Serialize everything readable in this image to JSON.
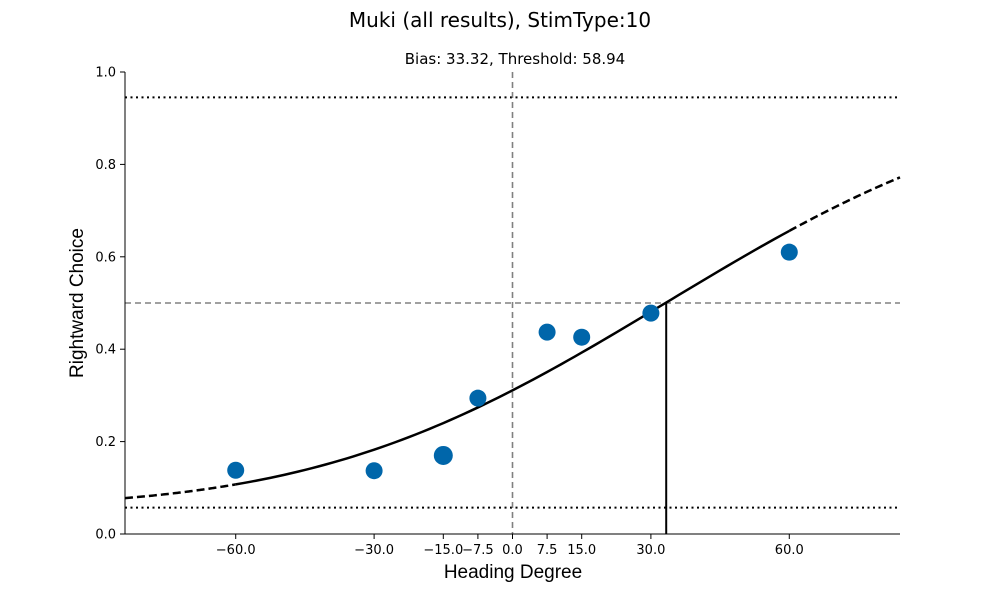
{
  "figure": {
    "title": "Muki (all results), StimType:10"
  },
  "chart_data": {
    "type": "scatter",
    "title": "Bias: 33.32, Threshold: 58.94",
    "xlabel": "Heading Degree",
    "ylabel": "Rightward Choice",
    "xlim": [
      -84,
      84
    ],
    "ylim": [
      0,
      1
    ],
    "x_ticks": [
      -60,
      -30,
      -15,
      -7.5,
      0,
      7.5,
      15,
      30,
      60
    ],
    "x_tick_labels": [
      "−60.0",
      "−30.0",
      "−15.0",
      "−7.5",
      "0.0",
      "7.5",
      "15.0",
      "30.0",
      "60.0"
    ],
    "y_ticks": [
      0,
      0.2,
      0.4,
      0.6,
      0.8,
      1.0
    ],
    "y_tick_labels": [
      "0.0",
      "0.2",
      "0.4",
      "0.6",
      "0.8",
      "1.0"
    ],
    "points": [
      {
        "x": -60,
        "y": 0.138
      },
      {
        "x": -30,
        "y": 0.137
      },
      {
        "x": -15,
        "y": 0.17
      },
      {
        "x": -7.5,
        "y": 0.294
      },
      {
        "x": 7.5,
        "y": 0.437
      },
      {
        "x": 15,
        "y": 0.426
      },
      {
        "x": 30,
        "y": 0.478
      },
      {
        "x": 60,
        "y": 0.61
      }
    ],
    "fit": {
      "bias": 33.32,
      "threshold": 58.94,
      "x_range": [
        -84,
        84
      ],
      "solid_range": [
        -60,
        60
      ]
    },
    "reference_lines": {
      "vertical_dashed_x": 0,
      "horizontal_dashed_y": 0.5,
      "upper_dotted_y": 0.945,
      "lower_dotted_y": 0.057,
      "bias_marker_x": 33.32
    },
    "grid": false,
    "colors": {
      "points": "#0066aa",
      "fit": "#000000",
      "reference": "#808080"
    }
  }
}
